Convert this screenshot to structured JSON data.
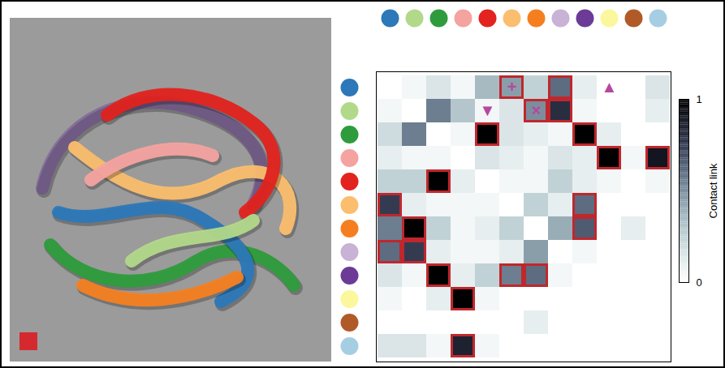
{
  "chart_data": {
    "type": "heatmap",
    "colors": [
      "#2c78b8",
      "#b2d98a",
      "#2e9c3c",
      "#f4a3a0",
      "#e2231f",
      "#fbbe6e",
      "#f57f20",
      "#c8b2d6",
      "#6b3b96",
      "#fbf79c",
      "#b05a28",
      "#a6cee3"
    ],
    "values": [
      [
        0,
        0.05,
        0.15,
        0.05,
        0.35,
        0.45,
        0.25,
        0.6,
        0.1,
        0,
        0,
        0.15
      ],
      [
        0.05,
        0,
        0.55,
        0.3,
        0.05,
        0.15,
        0.5,
        0.8,
        0.05,
        0,
        0,
        0.1
      ],
      [
        0.2,
        0.55,
        0,
        0.05,
        1,
        0.15,
        0.1,
        0.05,
        1,
        0.1,
        0,
        0
      ],
      [
        0.1,
        0.05,
        0.05,
        0,
        0.15,
        0.1,
        0.05,
        0.15,
        0.1,
        1,
        0.05,
        0.9
      ],
      [
        0.25,
        0.25,
        1,
        0.1,
        0,
        0.05,
        0.05,
        0.25,
        0.1,
        0.05,
        0,
        0.05
      ],
      [
        0.75,
        0.1,
        0.05,
        0.05,
        0.05,
        0,
        0.25,
        0.1,
        0.6,
        0,
        0,
        0
      ],
      [
        0.55,
        1,
        0.25,
        0.05,
        0.1,
        0.25,
        0,
        0.4,
        0.65,
        0,
        0.1,
        0
      ],
      [
        0.6,
        0.75,
        0.1,
        0.05,
        0.05,
        0.1,
        0.45,
        0,
        0.05,
        0,
        0,
        0
      ],
      [
        0.15,
        0.05,
        1,
        0.1,
        0.25,
        0.55,
        0.6,
        0.05,
        0,
        0,
        0,
        0
      ],
      [
        0.05,
        0,
        0.1,
        1,
        0.05,
        0,
        0,
        0,
        0,
        0,
        0,
        0
      ],
      [
        0,
        0,
        0,
        0,
        0,
        0,
        0.1,
        0,
        0,
        0,
        0,
        0
      ],
      [
        0.15,
        0.15,
        0.05,
        0.85,
        0.05,
        0,
        0,
        0,
        0,
        0,
        0,
        0
      ]
    ],
    "highlighted": [
      [
        0,
        5
      ],
      [
        0,
        7
      ],
      [
        1,
        6
      ],
      [
        1,
        7
      ],
      [
        2,
        4
      ],
      [
        2,
        8
      ],
      [
        3,
        9
      ],
      [
        3,
        11
      ],
      [
        4,
        2
      ],
      [
        5,
        0
      ],
      [
        5,
        8
      ],
      [
        6,
        1
      ],
      [
        6,
        8
      ],
      [
        7,
        0
      ],
      [
        7,
        1
      ],
      [
        8,
        2
      ],
      [
        8,
        5
      ],
      [
        8,
        6
      ],
      [
        9,
        3
      ],
      [
        11,
        3
      ]
    ],
    "annotations": [
      {
        "row": 0,
        "col": 5,
        "symbol": "+"
      },
      {
        "row": 1,
        "col": 6,
        "symbol": "×"
      },
      {
        "row": 0,
        "col": 9,
        "symbol": "▲"
      },
      {
        "row": 1,
        "col": 4,
        "symbol": "▼"
      }
    ],
    "colorbar": {
      "label": "Contact link",
      "range": [
        0,
        1
      ],
      "ticks": [
        0,
        1
      ]
    }
  }
}
